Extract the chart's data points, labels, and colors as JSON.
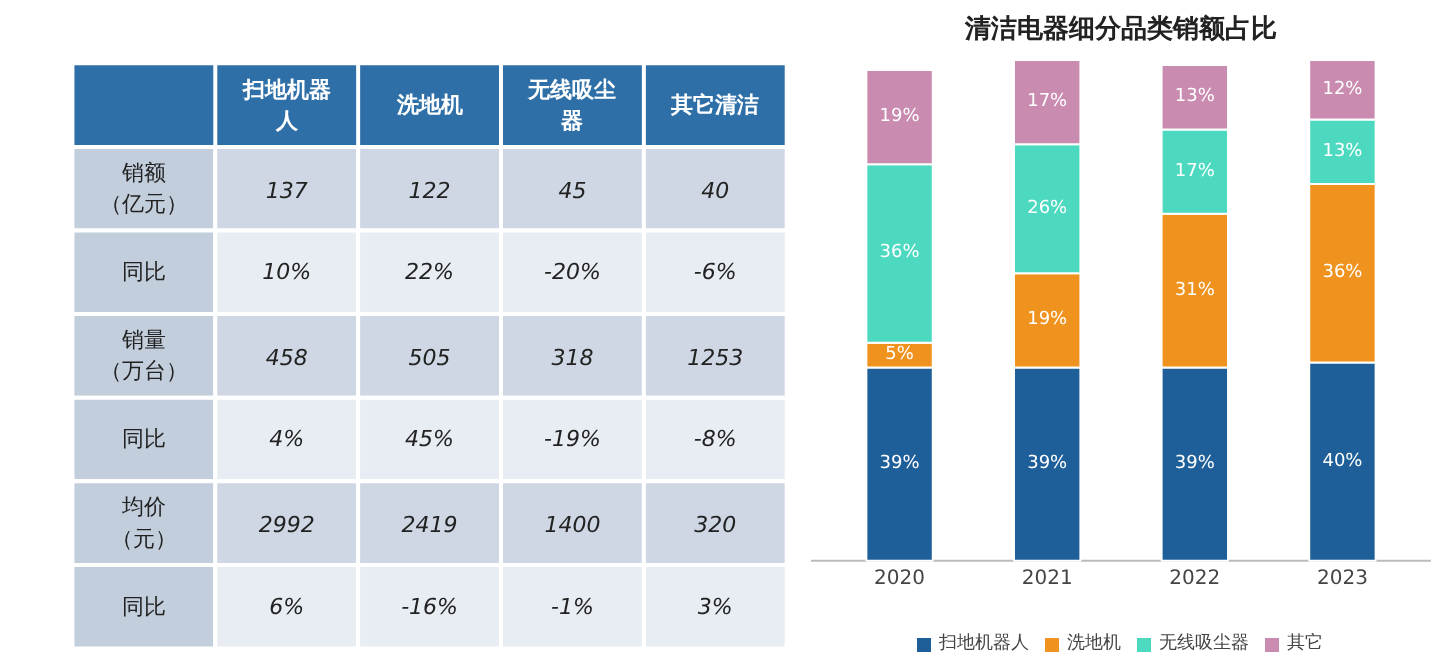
{
  "chart_data": [
    {
      "type": "other",
      "categories": [
        "扫地机器人",
        "洗地机",
        "无线吸尘器",
        "其它清洁"
      ],
      "y_categories": [
        "销额（亿元）",
        "同比",
        "销量（万台）",
        "同比",
        "均价（元）",
        "同比"
      ],
      "cell_labels": [
        [
          "137",
          "122",
          "45",
          "40"
        ],
        [
          "10%",
          "22%",
          "-20%",
          "-6%"
        ],
        [
          "458",
          "505",
          "318",
          "1253"
        ],
        [
          "4%",
          "45%",
          "-19%",
          "-8%"
        ],
        [
          "2992",
          "2419",
          "1400",
          "320"
        ],
        [
          "6%",
          "-16%",
          "-1%",
          "3%"
        ]
      ]
    },
    {
      "type": "bar",
      "title": "清洁电器细分品类销额占比",
      "categories": [
        "2020",
        "2021",
        "2022",
        "2023"
      ],
      "stacked": true,
      "legend": "bottom",
      "series": [
        {
          "name": "扫地机器人",
          "color": "#1f5f99",
          "values": [
            39,
            39,
            39,
            40
          ],
          "value_labels": [
            "39%",
            "39%",
            "39%",
            "40%"
          ]
        },
        {
          "name": "洗地机",
          "color": "#f0921e",
          "values": [
            5,
            19,
            31,
            36
          ],
          "value_labels": [
            "5%",
            "19%",
            "31%",
            "36%"
          ]
        },
        {
          "name": "无线吸尘器",
          "color": "#4dd9c0",
          "values": [
            36,
            26,
            17,
            13
          ],
          "value_labels": [
            "36%",
            "26%",
            "17%",
            "13%"
          ]
        },
        {
          "name": "其它",
          "color": "#c98bb0",
          "values": [
            19,
            17,
            13,
            12
          ],
          "value_labels": [
            "19%",
            "17%",
            "13%",
            "12%"
          ]
        }
      ]
    }
  ]
}
